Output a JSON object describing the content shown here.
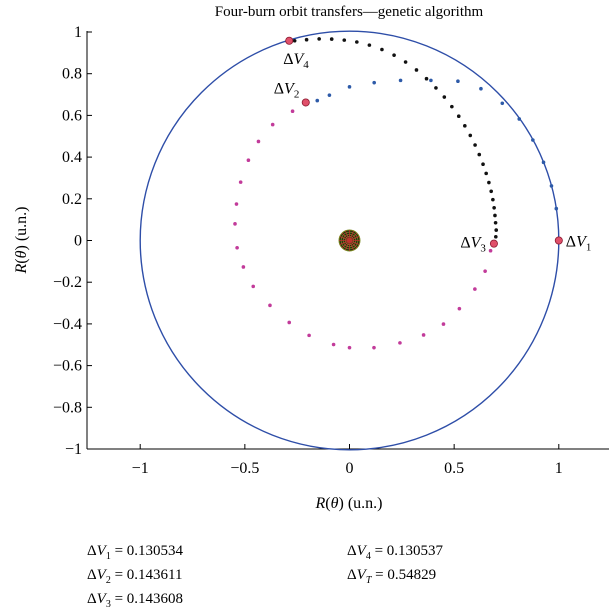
{
  "chart_data": {
    "type": "scatter",
    "title": "Four-burn orbit transfers—genetic algorithm",
    "xlabel": "R(θ) (u.n.)",
    "ylabel": "R(θ) (u.n.)",
    "xlim": [
      -1.3,
      1.3
    ],
    "ylim": [
      -1.05,
      1.05
    ],
    "x_ticks": [
      {
        "value": -1,
        "label": "−1"
      },
      {
        "value": -0.5,
        "label": "−0.5"
      },
      {
        "value": 0,
        "label": "0"
      },
      {
        "value": 0.5,
        "label": "0.5"
      },
      {
        "value": 1,
        "label": "1"
      }
    ],
    "y_ticks": [
      {
        "value": 1,
        "label": "1"
      },
      {
        "value": 0.8,
        "label": "0.8"
      },
      {
        "value": 0.6,
        "label": "0.6"
      },
      {
        "value": 0.4,
        "label": "0.4"
      },
      {
        "value": 0.2,
        "label": "0.2"
      },
      {
        "value": 0,
        "label": "0"
      },
      {
        "value": -0.2,
        "label": "−0.2"
      },
      {
        "value": -0.4,
        "label": "−0.4"
      },
      {
        "value": -0.6,
        "label": "−0.6"
      },
      {
        "value": -0.8,
        "label": "−0.8"
      },
      {
        "value": -1,
        "label": "−1"
      }
    ],
    "grid": false,
    "orbit": {
      "radius": 1,
      "color": "#2e4ea8"
    },
    "central_body": {
      "radius": 0.05,
      "fill": "#2a2a12",
      "line_color": "#c83030",
      "ring_color": "#7a8a20"
    },
    "series": [
      {
        "color": "#2d5aa8",
        "points": [
          [
            0.988,
            0.153
          ],
          [
            0.965,
            0.262
          ],
          [
            0.927,
            0.375
          ],
          [
            0.876,
            0.482
          ],
          [
            0.811,
            0.583
          ],
          [
            0.73,
            0.658
          ],
          [
            0.628,
            0.728
          ],
          [
            0.518,
            0.764
          ],
          [
            0.389,
            0.768
          ],
          [
            0.244,
            0.768
          ],
          [
            0.118,
            0.757
          ],
          [
            0.0,
            0.737
          ],
          [
            -0.096,
            0.697
          ],
          [
            -0.154,
            0.671
          ]
        ]
      },
      {
        "color": "#c23b9a",
        "points": [
          [
            -0.272,
            0.62
          ],
          [
            -0.367,
            0.556
          ],
          [
            -0.435,
            0.475
          ],
          [
            -0.483,
            0.385
          ],
          [
            -0.52,
            0.28
          ],
          [
            -0.54,
            0.175
          ],
          [
            -0.547,
            0.08
          ],
          [
            -0.537,
            -0.035
          ],
          [
            -0.507,
            -0.127
          ],
          [
            -0.46,
            -0.22
          ],
          [
            -0.38,
            -0.311
          ],
          [
            -0.288,
            -0.393
          ],
          [
            -0.193,
            -0.455
          ],
          [
            -0.076,
            -0.499
          ],
          [
            0.0,
            -0.514
          ],
          [
            0.117,
            -0.514
          ],
          [
            0.241,
            -0.491
          ],
          [
            0.354,
            -0.453
          ],
          [
            0.449,
            -0.401
          ],
          [
            0.525,
            -0.327
          ],
          [
            0.599,
            -0.233
          ],
          [
            0.648,
            -0.147
          ],
          [
            0.674,
            -0.049
          ]
        ]
      },
      {
        "color": "#111111",
        "points": [
          [
            0.699,
            0.018
          ],
          [
            0.701,
            0.05
          ],
          [
            0.698,
            0.085
          ],
          [
            0.695,
            0.12
          ],
          [
            0.691,
            0.157
          ],
          [
            0.685,
            0.196
          ],
          [
            0.677,
            0.236
          ],
          [
            0.666,
            0.278
          ],
          [
            0.653,
            0.322
          ],
          [
            0.638,
            0.366
          ],
          [
            0.62,
            0.412
          ],
          [
            0.6,
            0.458
          ],
          [
            0.577,
            0.504
          ],
          [
            0.551,
            0.55
          ],
          [
            0.522,
            0.596
          ],
          [
            0.489,
            0.642
          ],
          [
            0.453,
            0.688
          ],
          [
            0.413,
            0.732
          ],
          [
            0.368,
            0.776
          ],
          [
            0.32,
            0.818
          ],
          [
            0.268,
            0.856
          ],
          [
            0.213,
            0.889
          ],
          [
            0.155,
            0.916
          ],
          [
            0.095,
            0.937
          ],
          [
            0.035,
            0.952
          ],
          [
            -0.025,
            0.961
          ],
          [
            -0.085,
            0.966
          ],
          [
            -0.145,
            0.967
          ],
          [
            -0.205,
            0.963
          ],
          [
            -0.262,
            0.958
          ]
        ]
      }
    ],
    "burns": [
      {
        "id": "dv1",
        "x": 1.0,
        "y": 0.0,
        "label_main": "ΔV",
        "label_sub": "1",
        "label_side": "right"
      },
      {
        "id": "dv2",
        "x": -0.209,
        "y": 0.662,
        "label_main": "ΔV",
        "label_sub": "2",
        "label_side": "above-left"
      },
      {
        "id": "dv3",
        "x": 0.69,
        "y": -0.015,
        "label_main": "ΔV",
        "label_sub": "3",
        "label_side": "left"
      },
      {
        "id": "dv4",
        "x": -0.288,
        "y": 0.958,
        "label_main": "ΔV",
        "label_sub": "4",
        "label_side": "below"
      }
    ],
    "burn_marker_color": "#e0506a",
    "results": {
      "left": [
        {
          "label": "ΔV",
          "sub": "1",
          "value": " = 0.130534"
        },
        {
          "label": "ΔV",
          "sub": "2",
          "value": " = 0.143611"
        },
        {
          "label": "ΔV",
          "sub": "3",
          "value": " = 0.143608"
        }
      ],
      "right": [
        {
          "label": "ΔV",
          "sub": "4",
          "value": " = 0.130537"
        },
        {
          "label": "ΔV",
          "sub": "T",
          "value": " = 0.54829"
        }
      ]
    }
  }
}
